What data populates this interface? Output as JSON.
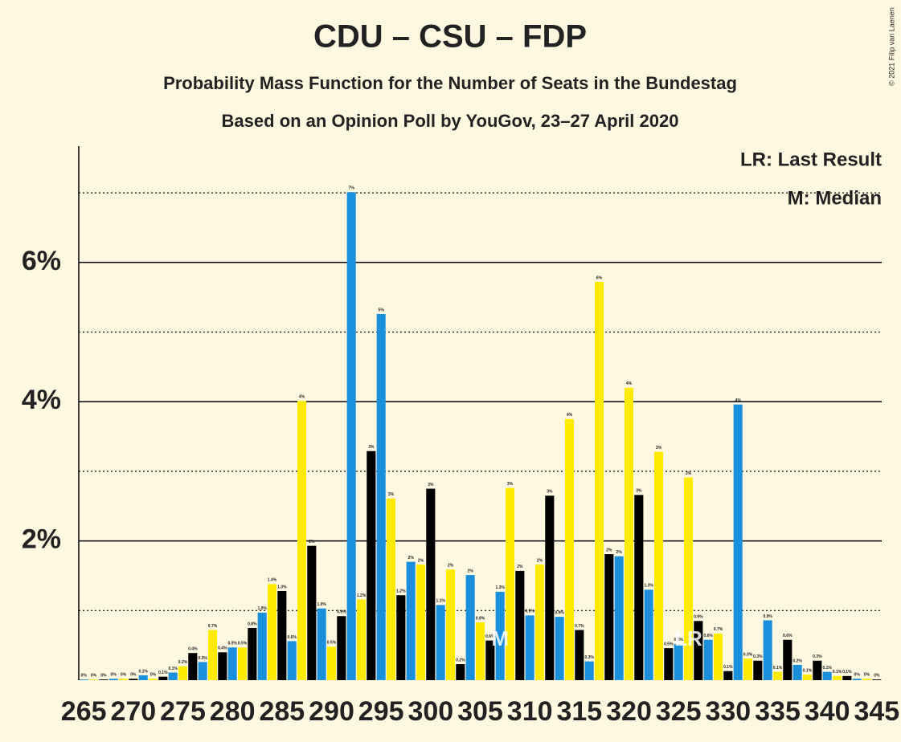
{
  "chart_data": {
    "type": "bar",
    "title": "CDU – CSU – FDP",
    "subtitle": "Probability Mass Function for the Number of Seats in the Bundestag",
    "subtitle2": "Based on an Opinion Poll by YouGov, 23–27 April 2020",
    "legend_lines": [
      "LR: Last Result",
      "M: Median"
    ],
    "copyright": "© 2021 Filip van Laenen",
    "color_cycle": [
      "#1a8fdc",
      "#ffeb00",
      "#000000"
    ],
    "x": [
      265,
      266,
      267,
      268,
      269,
      270,
      271,
      272,
      273,
      274,
      275,
      276,
      277,
      278,
      279,
      280,
      281,
      282,
      283,
      284,
      285,
      286,
      287,
      288,
      289,
      290,
      291,
      292,
      293,
      294,
      295,
      296,
      297,
      298,
      299,
      300,
      301,
      302,
      303,
      304,
      305,
      306,
      307,
      308,
      309,
      310,
      311,
      312,
      313,
      314,
      315,
      316,
      317,
      318,
      319,
      320,
      321,
      322,
      323,
      324,
      325,
      326,
      327,
      328,
      329,
      330,
      331,
      332,
      333,
      334,
      335,
      336,
      337,
      338,
      339,
      340,
      341,
      342,
      343,
      344,
      345
    ],
    "values": [
      0.01,
      0.01,
      0.01,
      0.02,
      0.02,
      0.02,
      0.07,
      0.02,
      0.05,
      0.11,
      0.2,
      0.39,
      0.26,
      0.72,
      0.4,
      0.47,
      0.47,
      0.75,
      0.97,
      1.38,
      1.28,
      0.56,
      4.01,
      1.93,
      1.03,
      0.48,
      0.92,
      7.01,
      1.16,
      3.29,
      5.26,
      2.61,
      1.22,
      1.7,
      1.66,
      2.75,
      1.08,
      1.59,
      0.23,
      1.51,
      0.83,
      0.57,
      1.27,
      2.76,
      1.57,
      0.93,
      1.66,
      2.65,
      0.91,
      3.75,
      0.72,
      0.27,
      5.72,
      1.81,
      1.78,
      4.2,
      2.66,
      1.3,
      3.28,
      0.46,
      0.52,
      2.91,
      0.85,
      0.58,
      0.67,
      0.13,
      3.96,
      0.31,
      0.28,
      0.86,
      0.12,
      0.58,
      0.22,
      0.08,
      0.28,
      0.12,
      0.06,
      0.06,
      0.02,
      0.02,
      0.01
    ],
    "value_labels": [
      "0%",
      "0%",
      "0%",
      "0%",
      "0%",
      "0%",
      "0.1%",
      "0%",
      "0.1%",
      "0.1%",
      "0.2%",
      "0.4%",
      "0.3%",
      "0.7%",
      "0.4%",
      "0.5%",
      "0.5%",
      "0.8%",
      "1.0%",
      "1.4%",
      "1.3%",
      "0.6%",
      "4%",
      "2%",
      "1.0%",
      "0.5%",
      "0.9%",
      "7%",
      "1.2%",
      "3%",
      "5%",
      "3%",
      "1.2%",
      "2%",
      "2%",
      "3%",
      "1.1%",
      "2%",
      "0.2%",
      "2%",
      "0.8%",
      "0.6%",
      "1.3%",
      "3%",
      "2%",
      "0.9%",
      "2%",
      "3%",
      "0.9%",
      "4%",
      "0.7%",
      "0.3%",
      "6%",
      "2%",
      "2%",
      "4%",
      "3%",
      "1.3%",
      "3%",
      "0.5%",
      "0.5%",
      "3%",
      "0.9%",
      "0.6%",
      "0.7%",
      "0.1%",
      "4%",
      "0.3%",
      "0.3%",
      "0.9%",
      "0.1%",
      "0.6%",
      "0.2%",
      "0.1%",
      "0.3%",
      "0.1%",
      "0.1%",
      "0.1%",
      "0%",
      "0%",
      "0%"
    ],
    "markers": [
      {
        "seat": 307,
        "label": "M"
      },
      {
        "seat": 326,
        "label": "LR"
      }
    ],
    "xlim": [
      264.5,
      345.5
    ],
    "xticks": [
      265,
      270,
      275,
      280,
      285,
      290,
      295,
      300,
      305,
      310,
      315,
      320,
      325,
      330,
      335,
      340,
      345
    ],
    "ylim": [
      0,
      7.67
    ],
    "yticks": [
      {
        "value": 2,
        "label": "2%"
      },
      {
        "value": 4,
        "label": "4%"
      },
      {
        "value": 6,
        "label": "6%"
      }
    ],
    "minor_yticks": [
      1,
      3,
      5,
      7
    ]
  }
}
